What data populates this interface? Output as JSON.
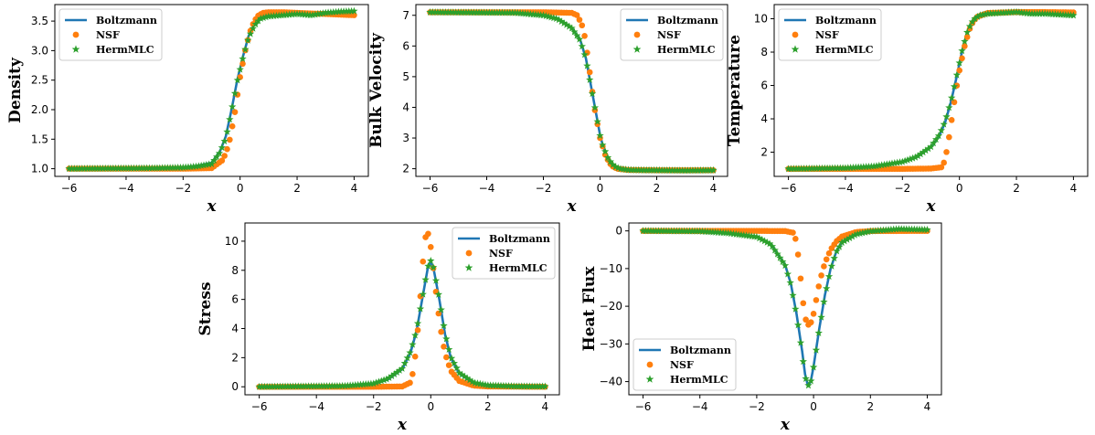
{
  "colors": {
    "Boltzmann": "#1f77b4",
    "NSF": "#ff7f0e",
    "HermMLC": "#2ca02c"
  },
  "chart_data": [
    {
      "type": "line",
      "ylabel": "Density",
      "xlabel": "x",
      "xlim": [
        -6.5,
        4.5
      ],
      "ylim": [
        0.87,
        3.78
      ],
      "xticks": [
        -6,
        -4,
        -2,
        0,
        2,
        4
      ],
      "xtick_labels": [
        "−6",
        "−4",
        "−2",
        "0",
        "2",
        "4"
      ],
      "yticks": [
        1.0,
        1.5,
        2.0,
        2.5,
        3.0,
        3.5
      ],
      "ytick_labels": [
        "1.0",
        "1.5",
        "2.0",
        "2.5",
        "3.0",
        "3.5"
      ],
      "legend": {
        "position": "top-left",
        "entries": [
          "Boltzmann",
          "NSF",
          "HermMLC"
        ]
      },
      "series": [
        {
          "name": "Boltzmann",
          "marker": "line",
          "x": [
            -6,
            -3,
            -2,
            -1.5,
            -1,
            -0.7,
            -0.5,
            -0.3,
            -0.1,
            0,
            0.1,
            0.3,
            0.5,
            0.7,
            1,
            1.5,
            2,
            3,
            4
          ],
          "y": [
            1.0,
            1.0,
            1.02,
            1.05,
            1.1,
            1.3,
            1.55,
            2.0,
            2.5,
            2.7,
            2.9,
            3.25,
            3.45,
            3.56,
            3.62,
            3.64,
            3.64,
            3.65,
            3.65
          ]
        },
        {
          "name": "NSF",
          "marker": "circle",
          "x": [
            -6,
            -2,
            -1,
            -0.6,
            -0.4,
            -0.2,
            0,
            0.2,
            0.4,
            0.6,
            0.8,
            1,
            1.5,
            2,
            3,
            4
          ],
          "y": [
            1.0,
            1.0,
            1.01,
            1.15,
            1.4,
            1.9,
            2.55,
            3.05,
            3.4,
            3.58,
            3.64,
            3.65,
            3.65,
            3.64,
            3.62,
            3.6
          ]
        },
        {
          "name": "HermMLC",
          "marker": "star",
          "x": [
            -6,
            -3,
            -2,
            -1.5,
            -1,
            -0.7,
            -0.5,
            -0.3,
            -0.1,
            0,
            0.1,
            0.3,
            0.5,
            0.7,
            1,
            1.5,
            2,
            2.5,
            3,
            3.5,
            4
          ],
          "y": [
            1.0,
            1.01,
            1.02,
            1.04,
            1.08,
            1.28,
            1.52,
            1.98,
            2.48,
            2.68,
            2.88,
            3.22,
            3.42,
            3.54,
            3.58,
            3.6,
            3.62,
            3.6,
            3.64,
            3.66,
            3.67
          ]
        }
      ]
    },
    {
      "type": "line",
      "ylabel": "Bulk Velocity",
      "xlabel": "x",
      "xlim": [
        -6.5,
        4.5
      ],
      "ylim": [
        1.75,
        7.35
      ],
      "xticks": [
        -6,
        -4,
        -2,
        0,
        2,
        4
      ],
      "xtick_labels": [
        "−6",
        "−4",
        "−2",
        "0",
        "2",
        "4"
      ],
      "yticks": [
        2,
        3,
        4,
        5,
        6,
        7
      ],
      "ytick_labels": [
        "2",
        "3",
        "4",
        "5",
        "6",
        "7"
      ],
      "legend": {
        "position": "top-right",
        "entries": [
          "Boltzmann",
          "NSF",
          "HermMLC"
        ]
      },
      "series": [
        {
          "name": "Boltzmann",
          "marker": "line",
          "x": [
            -6,
            -3,
            -2,
            -1.5,
            -1,
            -0.7,
            -0.5,
            -0.3,
            -0.1,
            0,
            0.1,
            0.3,
            0.5,
            0.7,
            1,
            1.5,
            2,
            4
          ],
          "y": [
            7.1,
            7.08,
            7.0,
            6.9,
            6.6,
            6.2,
            5.6,
            4.6,
            3.6,
            3.1,
            2.75,
            2.3,
            2.1,
            2.02,
            1.97,
            1.95,
            1.95,
            1.95
          ]
        },
        {
          "name": "NSF",
          "marker": "circle",
          "x": [
            -6,
            -2,
            -1,
            -0.8,
            -0.6,
            -0.5,
            -0.4,
            -0.3,
            -0.2,
            -0.1,
            0,
            0.2,
            0.4,
            0.6,
            1,
            2,
            4
          ],
          "y": [
            7.1,
            7.1,
            7.08,
            7.0,
            6.6,
            6.1,
            5.4,
            4.7,
            4.0,
            3.5,
            3.0,
            2.4,
            2.1,
            2.0,
            1.96,
            1.95,
            1.95
          ]
        },
        {
          "name": "HermMLC",
          "marker": "star",
          "x": [
            -6,
            -3,
            -2,
            -1.5,
            -1,
            -0.7,
            -0.5,
            -0.3,
            -0.1,
            0,
            0.1,
            0.3,
            0.5,
            0.7,
            1,
            1.5,
            2,
            3,
            4
          ],
          "y": [
            7.1,
            7.08,
            7.0,
            6.88,
            6.58,
            6.18,
            5.58,
            4.58,
            3.58,
            3.08,
            2.74,
            2.3,
            2.08,
            2.0,
            1.96,
            1.95,
            1.95,
            1.94,
            1.95
          ]
        }
      ]
    },
    {
      "type": "line",
      "ylabel": "Temperature",
      "xlabel": "x",
      "xlim": [
        -6.5,
        4.5
      ],
      "ylim": [
        0.55,
        10.85
      ],
      "xticks": [
        -6,
        -4,
        -2,
        0,
        2,
        4
      ],
      "xtick_labels": [
        "−6",
        "−4",
        "−2",
        "0",
        "2",
        "4"
      ],
      "yticks": [
        2,
        4,
        6,
        8,
        10
      ],
      "ytick_labels": [
        "2",
        "4",
        "6",
        "8",
        "10"
      ],
      "legend": {
        "position": "top-left",
        "entries": [
          "Boltzmann",
          "NSF",
          "HermMLC"
        ]
      },
      "series": [
        {
          "name": "Boltzmann",
          "marker": "line",
          "x": [
            -6,
            -4,
            -3,
            -2,
            -1.5,
            -1,
            -0.7,
            -0.5,
            -0.3,
            -0.1,
            0,
            0.1,
            0.3,
            0.5,
            0.7,
            1,
            1.5,
            2,
            3,
            4
          ],
          "y": [
            1.0,
            1.05,
            1.15,
            1.4,
            1.7,
            2.3,
            3.0,
            3.8,
            5.0,
            6.5,
            7.3,
            8.1,
            9.3,
            9.9,
            10.2,
            10.3,
            10.35,
            10.35,
            10.3,
            10.3
          ]
        },
        {
          "name": "NSF",
          "marker": "circle",
          "x": [
            -6,
            -2,
            -1,
            -0.6,
            -0.5,
            -0.4,
            -0.3,
            -0.2,
            -0.1,
            0,
            0.2,
            0.4,
            0.6,
            1,
            2,
            3,
            4
          ],
          "y": [
            1.0,
            1.0,
            1.02,
            1.1,
            1.6,
            2.5,
            3.6,
            4.8,
            5.9,
            6.9,
            8.5,
            9.6,
            10.1,
            10.35,
            10.4,
            10.4,
            10.38
          ]
        },
        {
          "name": "HermMLC",
          "marker": "star",
          "x": [
            -6,
            -4,
            -3,
            -2,
            -1.5,
            -1,
            -0.7,
            -0.5,
            -0.3,
            -0.1,
            0,
            0.1,
            0.3,
            0.5,
            0.7,
            1,
            1.5,
            2,
            2.5,
            3,
            3.5,
            4
          ],
          "y": [
            1.0,
            1.05,
            1.15,
            1.42,
            1.72,
            2.32,
            3.05,
            3.85,
            5.05,
            6.55,
            7.35,
            8.15,
            9.35,
            9.95,
            10.2,
            10.3,
            10.35,
            10.4,
            10.3,
            10.3,
            10.25,
            10.2
          ]
        }
      ]
    },
    {
      "type": "line",
      "ylabel": "Stress",
      "xlabel": "x",
      "xlim": [
        -6.5,
        4.5
      ],
      "ylim": [
        -0.55,
        11.25
      ],
      "xticks": [
        -6,
        -4,
        -2,
        0,
        2,
        4
      ],
      "xtick_labels": [
        "−6",
        "−4",
        "−2",
        "0",
        "2",
        "4"
      ],
      "yticks": [
        0,
        2,
        4,
        6,
        8,
        10
      ],
      "ytick_labels": [
        "0",
        "2",
        "4",
        "6",
        "8",
        "10"
      ],
      "legend": {
        "position": "top-right",
        "entries": [
          "Boltzmann",
          "NSF",
          "HermMLC"
        ]
      },
      "series": [
        {
          "name": "Boltzmann",
          "marker": "line",
          "x": [
            -6,
            -3,
            -2,
            -1.5,
            -1,
            -0.7,
            -0.5,
            -0.3,
            -0.1,
            0,
            0.1,
            0.3,
            0.5,
            0.7,
            1,
            1.5,
            2,
            3,
            4
          ],
          "y": [
            0,
            0.05,
            0.2,
            0.5,
            1.2,
            2.4,
            3.8,
            6.0,
            8.2,
            8.6,
            8.1,
            6.0,
            3.6,
            2.0,
            0.9,
            0.25,
            0.08,
            0.02,
            0
          ]
        },
        {
          "name": "NSF",
          "marker": "circle",
          "x": [
            -6,
            -2,
            -1,
            -0.7,
            -0.6,
            -0.5,
            -0.4,
            -0.3,
            -0.2,
            -0.1,
            0,
            0.1,
            0.2,
            0.3,
            0.4,
            0.5,
            0.7,
            1,
            1.5,
            2,
            4
          ],
          "y": [
            0,
            0,
            0.02,
            0.3,
            1.2,
            2.8,
            5.2,
            8.0,
            10.2,
            10.6,
            9.6,
            8.0,
            6.2,
            4.6,
            3.3,
            2.3,
            1.1,
            0.4,
            0.08,
            0.02,
            0
          ]
        },
        {
          "name": "HermMLC",
          "marker": "star",
          "x": [
            -6,
            -3,
            -2,
            -1.5,
            -1,
            -0.7,
            -0.5,
            -0.3,
            -0.1,
            0,
            0.1,
            0.3,
            0.5,
            0.7,
            1,
            1.5,
            2,
            3,
            4
          ],
          "y": [
            0,
            0.06,
            0.22,
            0.55,
            1.25,
            2.45,
            3.85,
            6.05,
            8.25,
            8.65,
            8.15,
            6.05,
            3.65,
            2.05,
            0.95,
            0.28,
            0.1,
            0.03,
            0.02
          ]
        }
      ]
    },
    {
      "type": "line",
      "ylabel": "Heat Flux",
      "xlabel": "x",
      "xlim": [
        -6.5,
        4.5
      ],
      "ylim": [
        -43.5,
        2.1
      ],
      "xticks": [
        -6,
        -4,
        -2,
        0,
        2,
        4
      ],
      "xtick_labels": [
        "−6",
        "−4",
        "−2",
        "0",
        "2",
        "4"
      ],
      "yticks": [
        0,
        -10,
        -20,
        -30,
        -40
      ],
      "ytick_labels": [
        "0",
        "−10",
        "−20",
        "−30",
        "−40"
      ],
      "legend": {
        "position": "bottom-left",
        "entries": [
          "Boltzmann",
          "NSF",
          "HermMLC"
        ]
      },
      "series": [
        {
          "name": "Boltzmann",
          "marker": "line",
          "x": [
            -6,
            -4,
            -3,
            -2,
            -1.5,
            -1,
            -0.8,
            -0.6,
            -0.4,
            -0.3,
            -0.2,
            -0.1,
            0,
            0.2,
            0.4,
            0.6,
            0.8,
            1,
            1.5,
            2,
            3,
            4
          ],
          "y": [
            0,
            -0.1,
            -0.5,
            -1.5,
            -3.5,
            -9,
            -14,
            -22,
            -32,
            -38,
            -41,
            -40,
            -36,
            -26,
            -17,
            -10,
            -5.5,
            -3,
            -0.8,
            -0.2,
            0,
            0
          ]
        },
        {
          "name": "NSF",
          "marker": "circle",
          "x": [
            -6,
            -2,
            -1,
            -0.7,
            -0.6,
            -0.5,
            -0.4,
            -0.3,
            -0.2,
            -0.1,
            0,
            0.1,
            0.2,
            0.3,
            0.4,
            0.6,
            0.8,
            1,
            1.5,
            2,
            4
          ],
          "y": [
            0,
            0,
            -0.05,
            -0.5,
            -3,
            -9,
            -17,
            -23,
            -25,
            -24.5,
            -22,
            -18,
            -14,
            -11,
            -8.5,
            -5,
            -2.8,
            -1.5,
            -0.3,
            -0.05,
            0
          ]
        },
        {
          "name": "HermMLC",
          "marker": "star",
          "x": [
            -6,
            -4,
            -3,
            -2,
            -1.5,
            -1,
            -0.8,
            -0.6,
            -0.4,
            -0.3,
            -0.2,
            -0.1,
            0,
            0.2,
            0.4,
            0.6,
            0.8,
            1,
            1.5,
            2,
            2.5,
            3,
            3.5,
            4
          ],
          "y": [
            0,
            -0.1,
            -0.6,
            -1.6,
            -3.6,
            -9.2,
            -14.2,
            -22.2,
            -32.5,
            -38.5,
            -41.2,
            -40.2,
            -36.2,
            -26.2,
            -17.2,
            -10.2,
            -5.6,
            -3.1,
            -0.9,
            -0.1,
            0.2,
            0.5,
            0.4,
            0.3
          ]
        }
      ]
    }
  ]
}
